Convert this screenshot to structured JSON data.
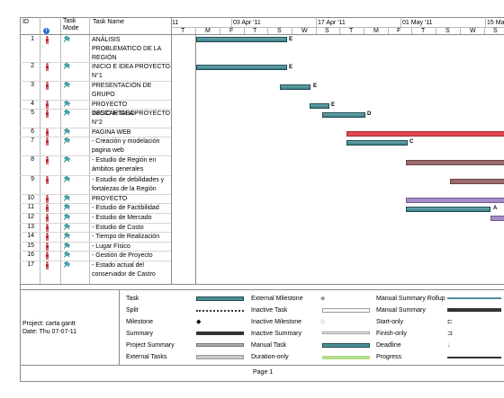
{
  "header": {
    "id": "ID",
    "task_mode": "Task Mode",
    "task_name": "Task Name",
    "timescale_top": [
      "11",
      "03 Apr '11",
      "17 Apr '11",
      "01 May '11",
      "15 Ma"
    ],
    "timescale_days": [
      "T",
      "M",
      "F",
      "T",
      "S",
      "W",
      "S",
      "T",
      "M",
      "F",
      "T",
      "S",
      "W",
      "S"
    ]
  },
  "tasks": [
    {
      "id": "1",
      "name": "ANÁLISIS PROBLEMATICO DE LA REGIÓN",
      "label": "E"
    },
    {
      "id": "2",
      "name": "INICIO E IDEA PROYECTO N°1",
      "label": "E"
    },
    {
      "id": "3",
      "name": "PRESENTACIÓN DE GRUPO",
      "label": "E"
    },
    {
      "id": "4",
      "name": "PROYECTO DESCARTADO",
      "label": "E"
    },
    {
      "id": "5",
      "name": "INICIO E IDEA PROYECTO N°2",
      "label": "D"
    },
    {
      "id": "6",
      "name": "PAGINA WEB",
      "label": ""
    },
    {
      "id": "7",
      "name": "- Creación y modelación pagina web",
      "label": "C"
    },
    {
      "id": "8",
      "name": "- Estudio de Región en ámbitos generales",
      "label": ""
    },
    {
      "id": "9",
      "name": "- Estudio de debilidades y fortalezas de la Región",
      "label": ""
    },
    {
      "id": "10",
      "name": "PROYECTO",
      "label": ""
    },
    {
      "id": "11",
      "name": "- Estudio de Factibilidad",
      "label": "A"
    },
    {
      "id": "12",
      "name": "- Estudio de Mercado",
      "label": ""
    },
    {
      "id": "13",
      "name": "- Estudio de Costo",
      "label": ""
    },
    {
      "id": "14",
      "name": "- Tiempo de Realización",
      "label": ""
    },
    {
      "id": "15",
      "name": "- Lugar Físico",
      "label": ""
    },
    {
      "id": "16",
      "name": "- Gestión de Proyecto",
      "label": ""
    },
    {
      "id": "17",
      "name": "- Estado actual del conservador de Castro",
      "label": ""
    }
  ],
  "legend": {
    "project": "Project: carta gantt",
    "date": "Date: Thu 07-07-11",
    "col1": [
      "Task",
      "Split",
      "Milestone",
      "Summary",
      "Project Summary",
      "External Tasks"
    ],
    "col2": [
      "External Milestone",
      "Inactive Task",
      "Inactive Milestone",
      "Inactive Summary",
      "Manual Task",
      "Duration-only"
    ],
    "col3": [
      "Manual Summary Rollup",
      "Manual Summary",
      "Start-only",
      "Finish-only",
      "Deadline",
      "Progress"
    ]
  },
  "footer": {
    "page": "Page 1"
  },
  "colors": {
    "task_bar": "#4d8f97",
    "summary_red": "#e0484f",
    "summary_purple": "#a58cc7",
    "manual_brown": "#9c6b6b",
    "person_red": "#c0282e",
    "pin_teal": "#3aa7b0"
  }
}
